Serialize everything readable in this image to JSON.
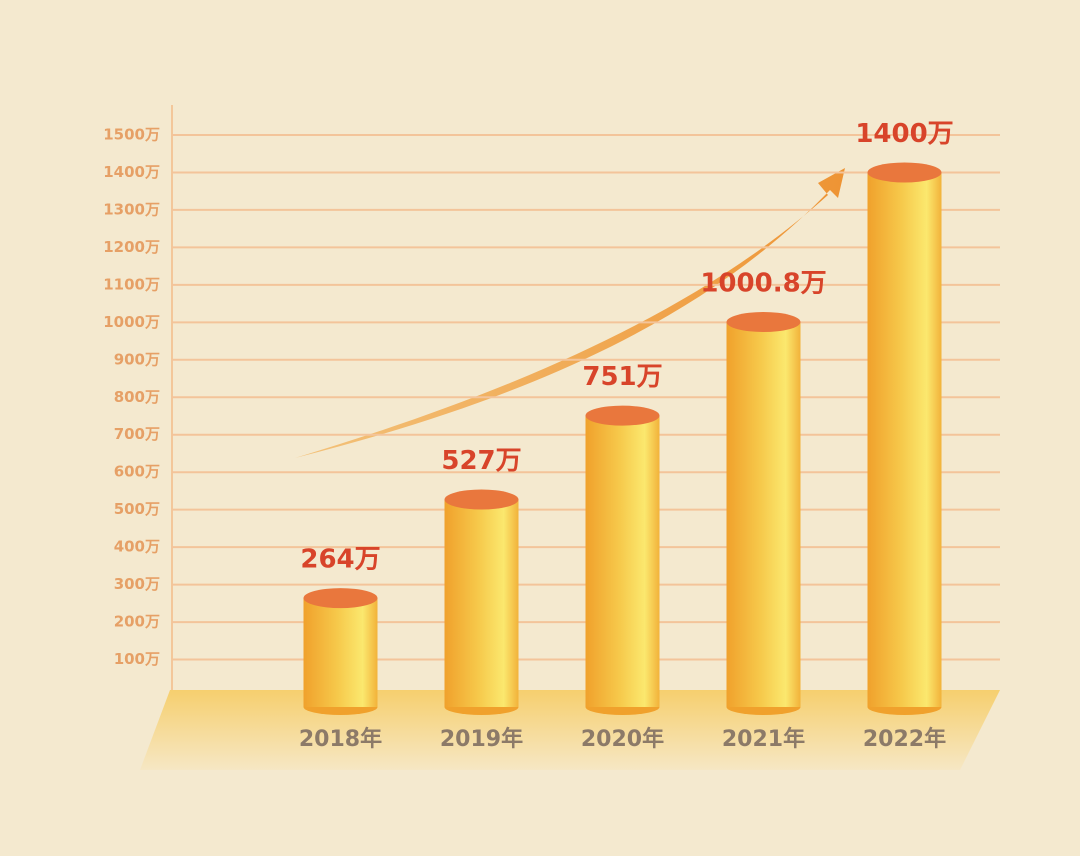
{
  "chart_data": {
    "type": "bar",
    "categories": [
      "2018年",
      "2019年",
      "2020年",
      "2021年",
      "2022年"
    ],
    "values": [
      264,
      527,
      751,
      1000.8,
      1400
    ],
    "value_labels": [
      "264万",
      "527万",
      "751万",
      "1000.8万",
      "1400万"
    ],
    "color": "#f6c84a",
    "ylim": [
      0,
      1500
    ],
    "yticks": [
      {
        "value": 100,
        "label": "100万"
      },
      {
        "value": 200,
        "label": "200万"
      },
      {
        "value": 300,
        "label": "300万"
      },
      {
        "value": 400,
        "label": "400万"
      },
      {
        "value": 500,
        "label": "500万"
      },
      {
        "value": 600,
        "label": "600万"
      },
      {
        "value": 700,
        "label": "700万"
      },
      {
        "value": 800,
        "label": "800万"
      },
      {
        "value": 900,
        "label": "900万"
      },
      {
        "value": 1000,
        "label": "1000万"
      },
      {
        "value": 1100,
        "label": "1100万"
      },
      {
        "value": 1200,
        "label": "1200万"
      },
      {
        "value": 1300,
        "label": "1300万"
      },
      {
        "value": 1400,
        "label": "1400万"
      },
      {
        "value": 1500,
        "label": "1500万"
      }
    ],
    "grid": true
  }
}
